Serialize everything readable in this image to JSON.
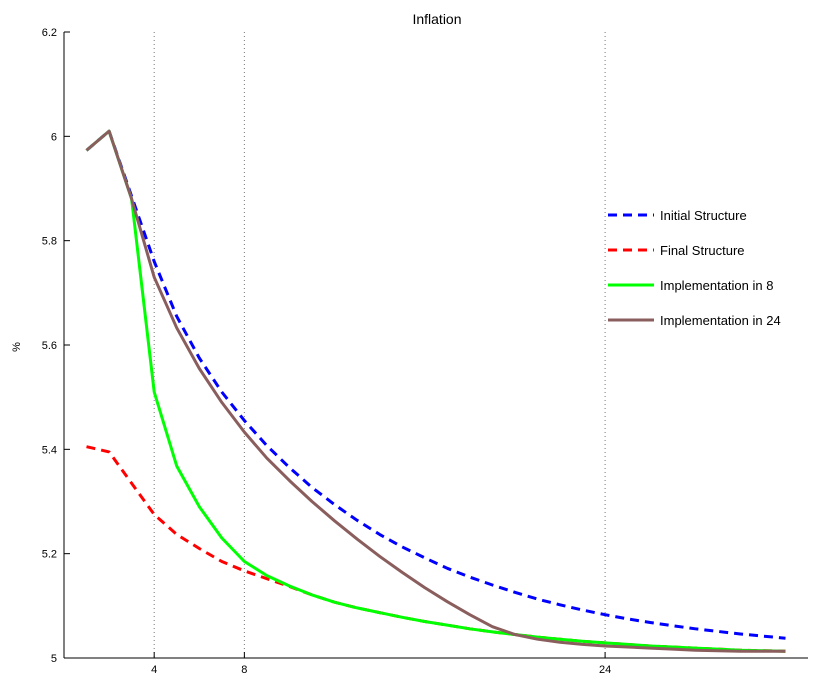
{
  "chart_data": {
    "type": "line",
    "title": "Inflation",
    "xlabel": "",
    "ylabel": "%",
    "xlim": [
      0,
      33
    ],
    "ylim": [
      5.0,
      6.2
    ],
    "xticks": [
      4,
      8,
      24
    ],
    "yticks": [
      5.0,
      5.2,
      5.4,
      5.6,
      5.8,
      6.0,
      6.2
    ],
    "ytick_labels": [
      "5",
      "5.2",
      "5.4",
      "5.6",
      "5.8",
      "6",
      "6.2"
    ],
    "vlines": [
      4,
      8,
      24
    ],
    "legend_position": "right",
    "x": [
      1,
      2,
      3,
      4,
      5,
      6,
      7,
      8,
      9,
      10,
      11,
      12,
      13,
      14,
      15,
      16,
      17,
      18,
      19,
      20,
      21,
      22,
      23,
      24,
      25,
      26,
      27,
      28,
      29,
      30,
      31,
      32
    ],
    "series": [
      {
        "name": "Initial Structure",
        "color": "#0000ff",
        "style": "dashed",
        "values": [
          5.973,
          6.01,
          5.885,
          5.76,
          5.655,
          5.575,
          5.51,
          5.455,
          5.407,
          5.365,
          5.327,
          5.294,
          5.264,
          5.237,
          5.213,
          5.192,
          5.172,
          5.155,
          5.14,
          5.126,
          5.113,
          5.102,
          5.092,
          5.083,
          5.075,
          5.068,
          5.062,
          5.056,
          5.051,
          5.046,
          5.042,
          5.038
        ]
      },
      {
        "name": "Final Structure",
        "color": "#ff0000",
        "style": "dashed",
        "values": [
          5.405,
          5.395,
          5.335,
          5.275,
          5.237,
          5.21,
          5.185,
          5.167,
          5.152,
          5.137,
          5.121,
          5.107,
          5.096,
          5.087,
          5.078,
          5.07,
          5.063,
          5.056,
          5.05,
          5.045,
          5.04,
          5.036,
          5.032,
          5.029,
          5.026,
          5.023,
          5.021,
          5.019,
          5.017,
          5.015,
          5.014,
          5.013
        ]
      },
      {
        "name": "Implementation in 8",
        "color": "#00ff00",
        "style": "solid",
        "values": [
          5.973,
          6.01,
          5.88,
          5.51,
          5.368,
          5.29,
          5.23,
          5.185,
          5.158,
          5.138,
          5.121,
          5.107,
          5.096,
          5.087,
          5.078,
          5.07,
          5.063,
          5.056,
          5.05,
          5.045,
          5.04,
          5.036,
          5.032,
          5.029,
          5.026,
          5.023,
          5.021,
          5.019,
          5.017,
          5.015,
          5.014,
          5.013
        ]
      },
      {
        "name": "Implementation in 24",
        "color": "#8b5e5e",
        "style": "solid",
        "values": [
          5.973,
          6.01,
          5.88,
          5.73,
          5.633,
          5.555,
          5.49,
          5.433,
          5.383,
          5.34,
          5.3,
          5.263,
          5.228,
          5.195,
          5.164,
          5.135,
          5.108,
          5.083,
          5.06,
          5.045,
          5.036,
          5.03,
          5.026,
          5.023,
          5.021,
          5.019,
          5.017,
          5.015,
          5.014,
          5.013,
          5.013,
          5.013
        ]
      }
    ]
  }
}
